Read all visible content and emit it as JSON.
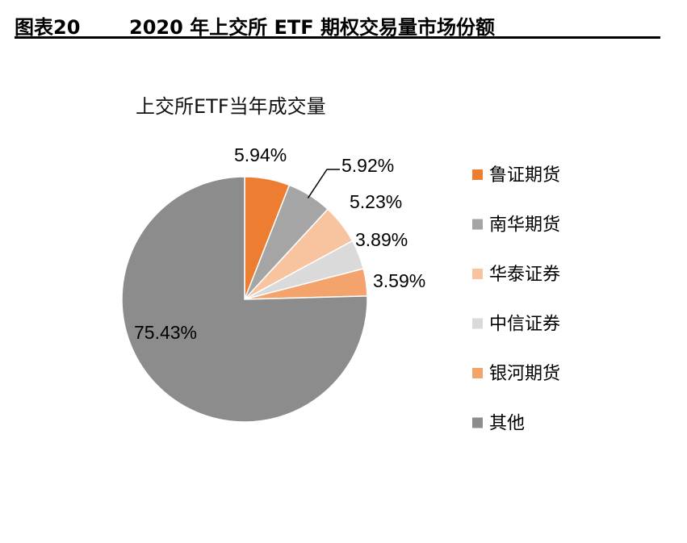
{
  "figure": {
    "label": "图表20",
    "title": "2020 年上交所 ETF 期权交易量市场份额"
  },
  "chart_data": {
    "type": "pie",
    "title": "上交所ETF当年成交量",
    "categories": [
      "鲁证期货",
      "南华期货",
      "华泰证券",
      "中信证券",
      "银河期货",
      "其他"
    ],
    "values": [
      5.94,
      5.92,
      5.23,
      3.89,
      3.59,
      75.43
    ],
    "labels": [
      "5.94%",
      "5.92%",
      "5.23%",
      "3.89%",
      "3.59%",
      "75.43%"
    ],
    "colors": [
      "#ED7D31",
      "#A5A5A5",
      "#F8C49F",
      "#DADADA",
      "#F4A36C",
      "#8C8C8C"
    ],
    "legend_position": "right"
  }
}
